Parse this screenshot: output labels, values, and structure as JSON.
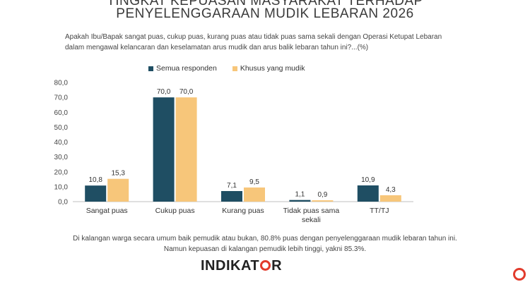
{
  "header": {
    "title_line1": "TINGKAT KEPUASAN MASYARAKAT TERHADAP",
    "title_line2": "PENYELENGGARAAN MUDIK LEBARAN 2026"
  },
  "question": "Apakah Ibu/Bapak sangat puas, cukup puas, kurang puas atau tidak puas sama sekali dengan Operasi Ketupat Lebaran dalam mengawal kelancaran dan keselamatan arus mudik dan arus balik lebaran tahun ini?...(%)",
  "footnotes": {
    "line1": "Di kalangan warga secara umum baik pemudik atau bukan, 80.8% puas dengan penyelenggaraan mudik lebaran tahun ini.",
    "line2": "Namun kepuasan di kalangan pemudik lebih tinggi, yakni 85.3%."
  },
  "logo": {
    "text_left": "INDIKAT",
    "text_right": "R"
  },
  "chart_data": {
    "type": "bar",
    "categories": [
      "Sangat puas",
      "Cukup puas",
      "Kurang puas",
      "Tidak puas sama sekali",
      "TT/TJ"
    ],
    "series": [
      {
        "name": "Semua responden",
        "color": "#1f4e63",
        "values": [
          10.8,
          70.0,
          7.1,
          1.1,
          10.9
        ]
      },
      {
        "name": "Khusus yang mudik",
        "color": "#f7c67a",
        "values": [
          15.3,
          70.0,
          9.5,
          0.9,
          4.3
        ]
      }
    ],
    "ylim": [
      0,
      80
    ],
    "yticks": [
      "0,0",
      "10,0",
      "20,0",
      "30,0",
      "40,0",
      "50,0",
      "60,0",
      "70,0",
      "80,0"
    ],
    "data_labels": [
      [
        "10,8",
        "70,0",
        "7,1",
        "1,1",
        "10,9"
      ],
      [
        "15,3",
        "70,0",
        "9,5",
        "0,9",
        "4,3"
      ]
    ],
    "grid": false,
    "legend": "top"
  }
}
